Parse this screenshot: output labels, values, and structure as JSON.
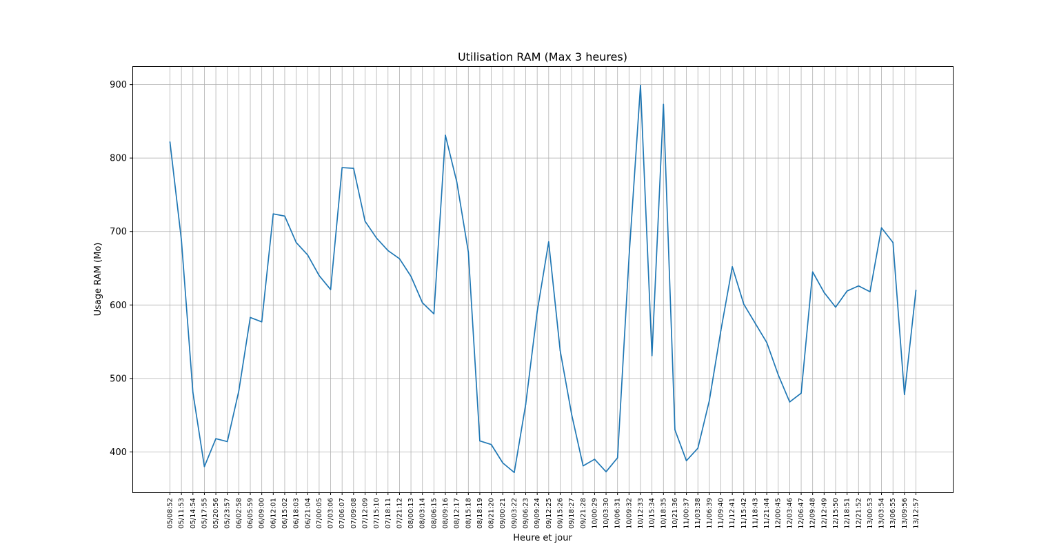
{
  "chart_data": {
    "type": "line",
    "title": "Utilisation RAM (Max 3 heures)",
    "xlabel": "Heure et jour",
    "ylabel": "Usage RAM (Mo)",
    "ylim": [
      345,
      925
    ],
    "yticks": [
      400,
      500,
      600,
      700,
      800,
      900
    ],
    "grid": true,
    "color": "#1f77b4",
    "categories": [
      "05/08:52",
      "05/11:53",
      "05/14:54",
      "05/17:55",
      "05/20:56",
      "05/23:57",
      "06/02:58",
      "06/05:59",
      "06/09:00",
      "06/12:01",
      "06/15:02",
      "06/18:03",
      "06/21:04",
      "07/00:05",
      "07/03:06",
      "07/06:07",
      "07/09:08",
      "07/12:09",
      "07/15:10",
      "07/18:11",
      "07/21:12",
      "08/00:13",
      "08/03:14",
      "08/06:15",
      "08/09:16",
      "08/12:17",
      "08/15:18",
      "08/18:19",
      "08/21:20",
      "09/00:21",
      "09/03:22",
      "09/06:23",
      "09/09:24",
      "09/12:25",
      "09/15:26",
      "09/18:27",
      "09/21:28",
      "10/00:29",
      "10/03:30",
      "10/06:31",
      "10/09:32",
      "10/12:33",
      "10/15:34",
      "10/18:35",
      "10/21:36",
      "11/00:37",
      "11/03:38",
      "11/06:39",
      "11/09:40",
      "11/12:41",
      "11/15:42",
      "11/18:43",
      "11/21:44",
      "12/00:45",
      "12/03:46",
      "12/06:47",
      "12/09:48",
      "12/12:49",
      "12/15:50",
      "12/18:51",
      "12/21:52",
      "13/00:53",
      "13/03:54",
      "13/06:55",
      "13/09:56",
      "13/12:57"
    ],
    "series": [
      {
        "values": [
          822,
          688,
          481,
          380,
          418,
          414,
          483,
          583,
          577,
          724,
          721,
          685,
          668,
          640,
          621,
          787,
          786,
          714,
          691,
          674,
          663,
          639,
          603,
          588,
          831,
          767,
          672,
          415,
          410,
          385,
          372,
          465,
          591,
          686,
          538,
          451,
          381,
          390,
          373,
          392,
          665,
          899,
          531,
          873,
          430,
          388,
          405,
          470,
          565,
          652,
          601,
          575,
          549,
          505,
          468,
          480,
          645,
          617,
          597,
          619,
          626,
          618,
          705,
          685,
          478,
          620
        ]
      }
    ]
  }
}
